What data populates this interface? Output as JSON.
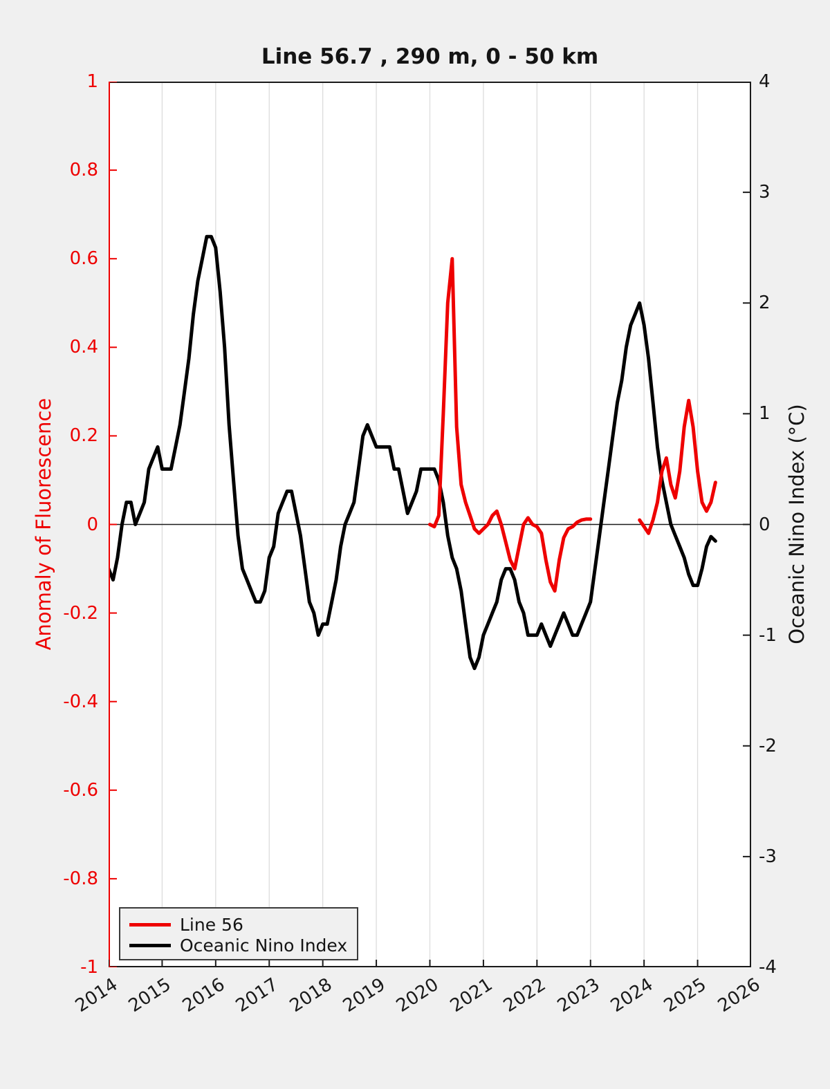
{
  "figure": {
    "background": "#f0f0f0",
    "plot_background": "#ffffff"
  },
  "colors": {
    "red_accent": "#ee0000",
    "axis_dark": "#1a1a1a",
    "grid": "#dcdcdc",
    "legend_bg": "#f0f0f0"
  },
  "chart_data": {
    "type": "line",
    "title": "Line 56.7 , 290 m, 0 - 50 km",
    "grid": "vertical-only",
    "zero_line": true,
    "x_axis": {
      "range": [
        2014,
        2026
      ],
      "tick_labels": [
        "2014",
        "2015",
        "2016",
        "2017",
        "2018",
        "2019",
        "2020",
        "2021",
        "2022",
        "2023",
        "2024",
        "2025",
        "2026"
      ],
      "grid_years": [
        2015,
        2016,
        2017,
        2018,
        2019,
        2020,
        2021,
        2022,
        2023,
        2024,
        2025
      ]
    },
    "left_y": {
      "label": "Anomaly of Fluorescence",
      "range": [
        -1,
        1
      ],
      "tick_labels": [
        "1",
        "0.8",
        "0.6",
        "0.4",
        "0.2",
        "0",
        "-0.2",
        "-0.4",
        "-0.6",
        "-0.8",
        "-1"
      ],
      "color": "#ee0000"
    },
    "right_y": {
      "label": "Oceanic Nino Index (°C)",
      "range": [
        -4,
        4
      ],
      "tick_labels": [
        "4",
        "3",
        "2",
        "1",
        "0",
        "-1",
        "-2",
        "-3",
        "-4"
      ],
      "color": "#1a1a1a"
    },
    "legend": {
      "position": "southwest",
      "entries": [
        "Line 56",
        "Oceanic Nino Index"
      ]
    },
    "series": [
      {
        "name": "Oceanic Nino Index",
        "axis": "right",
        "color": "#000000",
        "line_width": 5,
        "segments": [
          {
            "x_start": 2014.0,
            "x_step": 0.0833333,
            "values": [
              -0.4,
              -0.5,
              -0.3,
              0.0,
              0.2,
              0.2,
              0.0,
              0.1,
              0.2,
              0.5,
              0.6,
              0.7,
              0.5,
              0.5,
              0.5,
              0.7,
              0.9,
              1.2,
              1.5,
              1.9,
              2.2,
              2.4,
              2.6,
              2.6,
              2.5,
              2.1,
              1.6,
              0.9,
              0.4,
              -0.1,
              -0.4,
              -0.5,
              -0.6,
              -0.7,
              -0.7,
              -0.6,
              -0.3,
              -0.2,
              0.1,
              0.2,
              0.3,
              0.3,
              0.1,
              -0.1,
              -0.4,
              -0.7,
              -0.8,
              -1.0,
              -0.9,
              -0.9,
              -0.7,
              -0.5,
              -0.2,
              0.0,
              0.1,
              0.2,
              0.5,
              0.8,
              0.9,
              0.8,
              0.7,
              0.7,
              0.7,
              0.7,
              0.5,
              0.5,
              0.3,
              0.1,
              0.2,
              0.3,
              0.5,
              0.5,
              0.5,
              0.5,
              0.4,
              0.2,
              -0.1,
              -0.3,
              -0.4,
              -0.6,
              -0.9,
              -1.2,
              -1.3,
              -1.2,
              -1.0,
              -0.9,
              -0.8,
              -0.7,
              -0.5,
              -0.4,
              -0.4,
              -0.5,
              -0.7,
              -0.8,
              -1.0,
              -1.0,
              -1.0,
              -0.9,
              -1.0,
              -1.1,
              -1.0,
              -0.9,
              -0.8,
              -0.9,
              -1.0,
              -1.0,
              -0.9,
              -0.8,
              -0.7,
              -0.4,
              -0.1,
              0.2,
              0.5,
              0.8,
              1.1,
              1.3,
              1.6,
              1.8,
              1.9,
              2.0,
              1.8,
              1.5,
              1.1,
              0.7,
              0.4,
              0.2,
              0.0,
              -0.1,
              -0.2,
              -0.3,
              -0.45,
              -0.55,
              -0.55,
              -0.4,
              -0.2,
              -0.11,
              -0.15
            ]
          }
        ]
      },
      {
        "name": "Line 56",
        "axis": "left",
        "color": "#ee0000",
        "line_width": 5,
        "segments": [
          {
            "x_start": 2020.0,
            "x_step": 0.0833333,
            "values": [
              0.0,
              -0.005,
              0.02,
              0.25,
              0.5,
              0.6,
              0.22,
              0.09,
              0.05,
              0.02,
              -0.01,
              -0.02,
              -0.01,
              0.0,
              0.02,
              0.03,
              0.0,
              -0.04,
              -0.08,
              -0.1,
              -0.05,
              0.0,
              0.015,
              0.0,
              -0.005,
              -0.02,
              -0.08,
              -0.13,
              -0.15,
              -0.08,
              -0.03,
              -0.01,
              -0.005,
              0.005,
              0.01,
              0.012,
              0.012
            ]
          },
          {
            "x_start": 2023.9167,
            "x_step": 0.0833333,
            "values": [
              0.01,
              -0.005,
              -0.02,
              0.01,
              0.05,
              0.12,
              0.15,
              0.09,
              0.06,
              0.12,
              0.22,
              0.28,
              0.22,
              0.12,
              0.05,
              0.03,
              0.05,
              0.095
            ]
          }
        ]
      }
    ]
  }
}
